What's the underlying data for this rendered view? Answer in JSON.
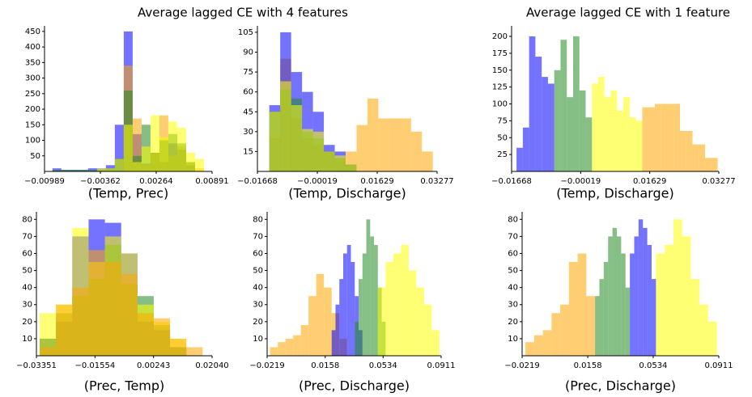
{
  "figure_titles": [
    "Average lagged CE with 4 features",
    "Average lagged CE with 1 feature"
  ],
  "chart_data": [
    {
      "type": "histogram",
      "xlabel": "(Temp, Prec)",
      "xlim": [
        -0.00989,
        0.00891
      ],
      "xticks": [
        {
          "value": -0.00989,
          "label": "−0.00989"
        },
        {
          "value": -0.00362,
          "label": "−0.00362"
        },
        0.00264,
        0.00891
      ],
      "ylim": [
        0,
        460
      ],
      "yticks": [
        50,
        100,
        150,
        200,
        250,
        300,
        350,
        400,
        450
      ],
      "series": [
        {
          "color": "#0000ff",
          "bins": [
            -0.009,
            -0.008,
            -0.007,
            -0.006,
            -0.005,
            -0.004,
            -0.003,
            -0.002,
            -0.001,
            0,
            0.001,
            0.002,
            0.003,
            0.004,
            0.005,
            0.006,
            0.007
          ],
          "values": [
            10,
            5,
            5,
            5,
            10,
            10,
            20,
            150,
            450,
            120,
            25,
            60,
            30,
            90,
            70,
            20
          ]
        },
        {
          "color": "#ffa500",
          "bins": [
            -0.001,
            0,
            0.001,
            0.002,
            0.003,
            0.004,
            0.005,
            0.006,
            0.007,
            0.008
          ],
          "values": [
            340,
            170,
            20,
            60,
            180,
            50,
            80,
            30,
            10
          ]
        },
        {
          "color": "#228b22",
          "bins": [
            -0.009,
            -0.007,
            -0.005,
            -0.003,
            -0.002,
            -0.001,
            0,
            0.001,
            0.002,
            0.003,
            0.004,
            0.005,
            0.006,
            0.007
          ],
          "values": [
            5,
            5,
            5,
            10,
            40,
            260,
            50,
            150,
            60,
            100,
            120,
            90,
            30
          ]
        },
        {
          "color": "#ffff00",
          "bins": [
            -0.004,
            -0.002,
            -0.001,
            0,
            0.001,
            0.002,
            0.003,
            0.004,
            0.005,
            0.006,
            0.007,
            0.008
          ],
          "values": [
            10,
            40,
            150,
            30,
            80,
            180,
            110,
            160,
            140,
            60,
            40
          ]
        }
      ]
    },
    {
      "type": "histogram",
      "xlabel": "(Temp, Discharge)",
      "xlim": [
        -0.01668,
        0.03277
      ],
      "xticks": [
        {
          "value": -0.01668,
          "label": "−0.01668"
        },
        {
          "value": -0.00019,
          "label": "−0.00019"
        },
        0.01629,
        0.03277
      ],
      "ylim": [
        0,
        108
      ],
      "yticks": [
        15,
        30,
        45,
        60,
        75,
        90,
        105
      ],
      "series": [
        {
          "color": "#ffa500",
          "bins": [
            -0.0134,
            -0.0104,
            -0.0074,
            -0.0044,
            -0.0014,
            0.0016,
            0.0046,
            0.0076,
            0.0106,
            0.0136,
            0.0166,
            0.0196,
            0.0226,
            0.0256,
            0.0286,
            0.0316
          ],
          "values": [
            25,
            85,
            40,
            25,
            20,
            15,
            10,
            15,
            35,
            55,
            40,
            40,
            40,
            30,
            15
          ]
        },
        {
          "color": "#0000ff",
          "bins": [
            -0.0134,
            -0.0104,
            -0.0074,
            -0.0044,
            -0.0014,
            0.0016,
            0.0046,
            0.0076,
            0.0106
          ],
          "values": [
            50,
            105,
            75,
            60,
            45,
            20,
            15,
            5
          ]
        },
        {
          "color": "#228b22",
          "bins": [
            -0.0134,
            -0.0104,
            -0.0074,
            -0.0044,
            -0.0014,
            0.0016,
            0.0046,
            0.0076,
            0.0106
          ],
          "values": [
            45,
            62,
            55,
            30,
            25,
            15,
            10,
            5
          ]
        },
        {
          "color": "#ffff00",
          "bins": [
            -0.0134,
            -0.0104,
            -0.0074,
            -0.0044,
            -0.0014,
            0.0016,
            0.0046,
            0.0076,
            0.0106
          ],
          "values": [
            45,
            68,
            50,
            32,
            30,
            15,
            12,
            5
          ]
        }
      ]
    },
    {
      "type": "histogram",
      "xlabel": "(Temp, Discharge)",
      "xlim": [
        -0.01668,
        0.03277
      ],
      "xticks": [
        {
          "value": -0.01668,
          "label": "−0.01668"
        },
        {
          "value": -0.00019,
          "label": "−0.00019"
        },
        0.01629,
        0.03277
      ],
      "ylim": [
        0,
        212
      ],
      "yticks": [
        25,
        50,
        75,
        100,
        125,
        150,
        175,
        200
      ],
      "series": [
        {
          "color": "#0000ff",
          "bins": [
            -0.0155,
            -0.014,
            -0.0125,
            -0.011,
            -0.0095,
            -0.008,
            -0.0065
          ],
          "values": [
            35,
            65,
            200,
            170,
            140,
            130
          ]
        },
        {
          "color": "#228b22",
          "bins": [
            -0.0065,
            -0.005,
            -0.0035,
            -0.002,
            -0.0005,
            0.001,
            0.0025
          ],
          "values": [
            150,
            195,
            110,
            200,
            120,
            80
          ]
        },
        {
          "color": "#ffff00",
          "bins": [
            0.0025,
            0.004,
            0.0055,
            0.007,
            0.0085,
            0.01,
            0.0115,
            0.013,
            0.0145
          ],
          "values": [
            130,
            140,
            110,
            120,
            90,
            110,
            80,
            75
          ]
        },
        {
          "color": "#ffa500",
          "bins": [
            0.0145,
            0.016,
            0.0175,
            0.019,
            0.0205,
            0.022,
            0.0235,
            0.025,
            0.0265,
            0.028,
            0.0295,
            0.031,
            0.0325
          ],
          "values": [
            95,
            95,
            100,
            100,
            100,
            100,
            60,
            60,
            40,
            40,
            20,
            20
          ]
        }
      ]
    },
    {
      "type": "histogram",
      "xlabel": "(Prec, Temp)",
      "xlim": [
        -0.03351,
        0.0204
      ],
      "xticks": [
        {
          "value": -0.03351,
          "label": "−0.03351"
        },
        {
          "value": -0.01554,
          "label": "−0.01554"
        },
        0.00243,
        {
          "value": 0.0204,
          "label": "0.02040"
        }
      ],
      "ylim": [
        0,
        83
      ],
      "yticks": [
        10,
        20,
        30,
        40,
        50,
        60,
        70,
        80
      ],
      "series": [
        {
          "color": "#0000ff",
          "bins": [
            -0.0325,
            -0.0275,
            -0.0225,
            -0.0175,
            -0.0125,
            -0.0075,
            -0.0025,
            0.0025,
            0.0075,
            0.0125
          ],
          "values": [
            10,
            20,
            70,
            80,
            78,
            60,
            20,
            15,
            5
          ]
        },
        {
          "color": "#228b22",
          "bins": [
            -0.0325,
            -0.0275,
            -0.0225,
            -0.0175,
            -0.0125,
            -0.0075,
            -0.0025,
            0.0025,
            0.0075,
            0.0125
          ],
          "values": [
            10,
            25,
            35,
            45,
            65,
            42,
            35,
            18,
            5
          ]
        },
        {
          "color": "#ffff00",
          "bins": [
            -0.0325,
            -0.0275,
            -0.0225,
            -0.0175,
            -0.0125,
            -0.0075,
            -0.0025,
            0.0025,
            0.0075,
            0.0125
          ],
          "values": [
            25,
            30,
            75,
            55,
            70,
            60,
            30,
            20,
            10
          ]
        },
        {
          "color": "#ffa500",
          "bins": [
            -0.0325,
            -0.0275,
            -0.0225,
            -0.0175,
            -0.0125,
            -0.0075,
            -0.0025,
            0.0025,
            0.0075,
            0.0125,
            0.0175
          ],
          "values": [
            5,
            30,
            40,
            62,
            55,
            48,
            25,
            22,
            10,
            5
          ]
        }
      ]
    },
    {
      "type": "histogram",
      "xlabel": "(Prec, Discharge)",
      "xlim": [
        -0.0219,
        0.0911
      ],
      "xticks": [
        {
          "value": -0.0219,
          "label": "−0.0219"
        },
        0.0158,
        0.0534,
        0.0911
      ],
      "ylim": [
        0,
        83
      ],
      "yticks": [
        10,
        20,
        30,
        40,
        50,
        60,
        70,
        80
      ],
      "series": [
        {
          "color": "#ffa500",
          "bins": [
            -0.02,
            -0.015,
            -0.01,
            -0.005,
            0,
            0.005,
            0.01,
            0.015,
            0.02,
            0.025,
            0.03
          ],
          "values": [
            5,
            8,
            10,
            12,
            18,
            35,
            48,
            40,
            25,
            10
          ]
        },
        {
          "color": "#0000ff",
          "bins": [
            0.02,
            0.0225,
            0.025,
            0.0275,
            0.03,
            0.0325,
            0.035,
            0.0375,
            0.04
          ],
          "values": [
            15,
            30,
            45,
            60,
            65,
            55,
            35,
            15
          ]
        },
        {
          "color": "#228b22",
          "bins": [
            0.035,
            0.0375,
            0.04,
            0.0425,
            0.045,
            0.0475,
            0.05,
            0.0525,
            0.055
          ],
          "values": [
            20,
            45,
            60,
            80,
            70,
            65,
            40,
            20
          ]
        },
        {
          "color": "#ffff00",
          "bins": [
            0.05,
            0.055,
            0.06,
            0.065,
            0.07,
            0.075,
            0.08,
            0.085,
            0.09
          ],
          "values": [
            40,
            55,
            60,
            65,
            50,
            40,
            30,
            15
          ]
        }
      ]
    },
    {
      "type": "histogram",
      "xlabel": "(Prec, Discharge)",
      "xlim": [
        -0.0219,
        0.0911
      ],
      "xticks": [
        {
          "value": -0.0219,
          "label": "−0.0219"
        },
        0.0158,
        0.0534,
        0.0911
      ],
      "ylim": [
        0,
        83
      ],
      "yticks": [
        10,
        20,
        30,
        40,
        50,
        60,
        70,
        80
      ],
      "series": [
        {
          "color": "#ffa500",
          "bins": [
            -0.02,
            -0.015,
            -0.01,
            -0.005,
            0,
            0.005,
            0.01,
            0.015,
            0.02
          ],
          "values": [
            8,
            12,
            15,
            25,
            30,
            55,
            60,
            35
          ]
        },
        {
          "color": "#228b22",
          "bins": [
            0.02,
            0.0225,
            0.025,
            0.0275,
            0.03,
            0.0325,
            0.035,
            0.0375,
            0.04
          ],
          "values": [
            35,
            45,
            55,
            70,
            75,
            70,
            60,
            40
          ]
        },
        {
          "color": "#0000ff",
          "bins": [
            0.04,
            0.0425,
            0.045,
            0.0475,
            0.05,
            0.0525,
            0.055
          ],
          "values": [
            60,
            70,
            80,
            75,
            65,
            45
          ]
        },
        {
          "color": "#ffff00",
          "bins": [
            0.055,
            0.06,
            0.065,
            0.07,
            0.075,
            0.08,
            0.085,
            0.09
          ],
          "values": [
            60,
            65,
            80,
            70,
            45,
            30,
            20
          ]
        }
      ]
    }
  ]
}
